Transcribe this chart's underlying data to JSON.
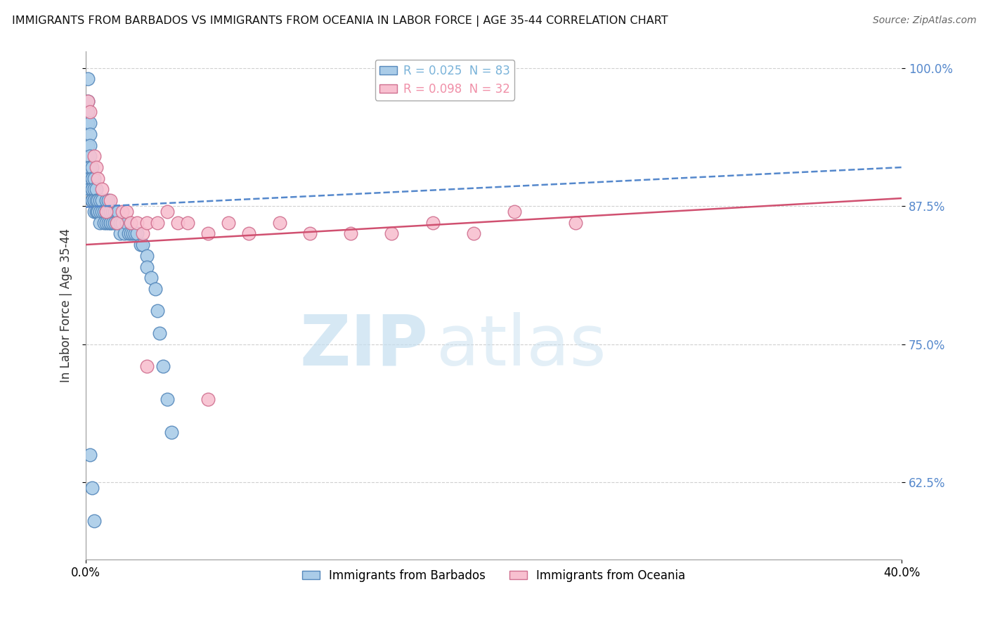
{
  "title": "IMMIGRANTS FROM BARBADOS VS IMMIGRANTS FROM OCEANIA IN LABOR FORCE | AGE 35-44 CORRELATION CHART",
  "source": "Source: ZipAtlas.com",
  "ylabel": "In Labor Force | Age 35-44",
  "watermark_zip": "ZIP",
  "watermark_atlas": "atlas",
  "legend_entries": [
    {
      "label": "R = 0.025  N = 83",
      "color": "#7ab3d9"
    },
    {
      "label": "R = 0.098  N = 32",
      "color": "#f090a8"
    }
  ],
  "xlim": [
    0.0,
    0.4
  ],
  "ylim": [
    0.555,
    1.015
  ],
  "yticks": [
    0.625,
    0.75,
    0.875,
    1.0
  ],
  "ytick_labels": [
    "62.5%",
    "75.0%",
    "87.5%",
    "100.0%"
  ],
  "xticks": [
    0.0,
    0.4
  ],
  "xtick_labels": [
    "0.0%",
    "40.0%"
  ],
  "grid_color": "#d0d0d0",
  "blue_color": "#aacce8",
  "blue_edge": "#5588bb",
  "pink_color": "#f8c0d0",
  "pink_edge": "#d07090",
  "blue_line_color": "#5588cc",
  "pink_line_color": "#d05070",
  "barbados_x": [
    0.001,
    0.001,
    0.001,
    0.001,
    0.001,
    0.002,
    0.002,
    0.002,
    0.002,
    0.002,
    0.002,
    0.002,
    0.002,
    0.002,
    0.002,
    0.003,
    0.003,
    0.003,
    0.003,
    0.003,
    0.003,
    0.003,
    0.003,
    0.004,
    0.004,
    0.004,
    0.004,
    0.004,
    0.005,
    0.005,
    0.005,
    0.006,
    0.006,
    0.006,
    0.007,
    0.007,
    0.007,
    0.008,
    0.008,
    0.009,
    0.009,
    0.01,
    0.01,
    0.01,
    0.01,
    0.011,
    0.011,
    0.011,
    0.012,
    0.012,
    0.012,
    0.013,
    0.013,
    0.014,
    0.014,
    0.015,
    0.015,
    0.016,
    0.016,
    0.017,
    0.017,
    0.018,
    0.019,
    0.02,
    0.021,
    0.022,
    0.023,
    0.024,
    0.025,
    0.027,
    0.028,
    0.03,
    0.03,
    0.032,
    0.034,
    0.035,
    0.036,
    0.038,
    0.04,
    0.042,
    0.002,
    0.003,
    0.004
  ],
  "barbados_y": [
    0.99,
    0.97,
    0.96,
    0.95,
    0.93,
    0.95,
    0.94,
    0.93,
    0.92,
    0.91,
    0.91,
    0.9,
    0.9,
    0.89,
    0.89,
    0.91,
    0.9,
    0.9,
    0.89,
    0.89,
    0.88,
    0.88,
    0.88,
    0.9,
    0.89,
    0.88,
    0.88,
    0.87,
    0.89,
    0.88,
    0.87,
    0.88,
    0.87,
    0.87,
    0.88,
    0.87,
    0.86,
    0.88,
    0.87,
    0.87,
    0.86,
    0.88,
    0.87,
    0.87,
    0.86,
    0.88,
    0.87,
    0.86,
    0.87,
    0.86,
    0.86,
    0.87,
    0.86,
    0.87,
    0.86,
    0.87,
    0.86,
    0.87,
    0.86,
    0.86,
    0.85,
    0.86,
    0.85,
    0.86,
    0.85,
    0.85,
    0.85,
    0.85,
    0.85,
    0.84,
    0.84,
    0.83,
    0.82,
    0.81,
    0.8,
    0.78,
    0.76,
    0.73,
    0.7,
    0.67,
    0.65,
    0.62,
    0.59
  ],
  "oceania_x": [
    0.001,
    0.002,
    0.004,
    0.005,
    0.006,
    0.008,
    0.01,
    0.012,
    0.015,
    0.018,
    0.02,
    0.022,
    0.025,
    0.028,
    0.03,
    0.035,
    0.04,
    0.045,
    0.05,
    0.06,
    0.07,
    0.08,
    0.095,
    0.11,
    0.13,
    0.15,
    0.17,
    0.19,
    0.21,
    0.24,
    0.03,
    0.06
  ],
  "oceania_y": [
    0.97,
    0.96,
    0.92,
    0.91,
    0.9,
    0.89,
    0.87,
    0.88,
    0.86,
    0.87,
    0.87,
    0.86,
    0.86,
    0.85,
    0.86,
    0.86,
    0.87,
    0.86,
    0.86,
    0.85,
    0.86,
    0.85,
    0.86,
    0.85,
    0.85,
    0.85,
    0.86,
    0.85,
    0.87,
    0.86,
    0.73,
    0.7
  ]
}
